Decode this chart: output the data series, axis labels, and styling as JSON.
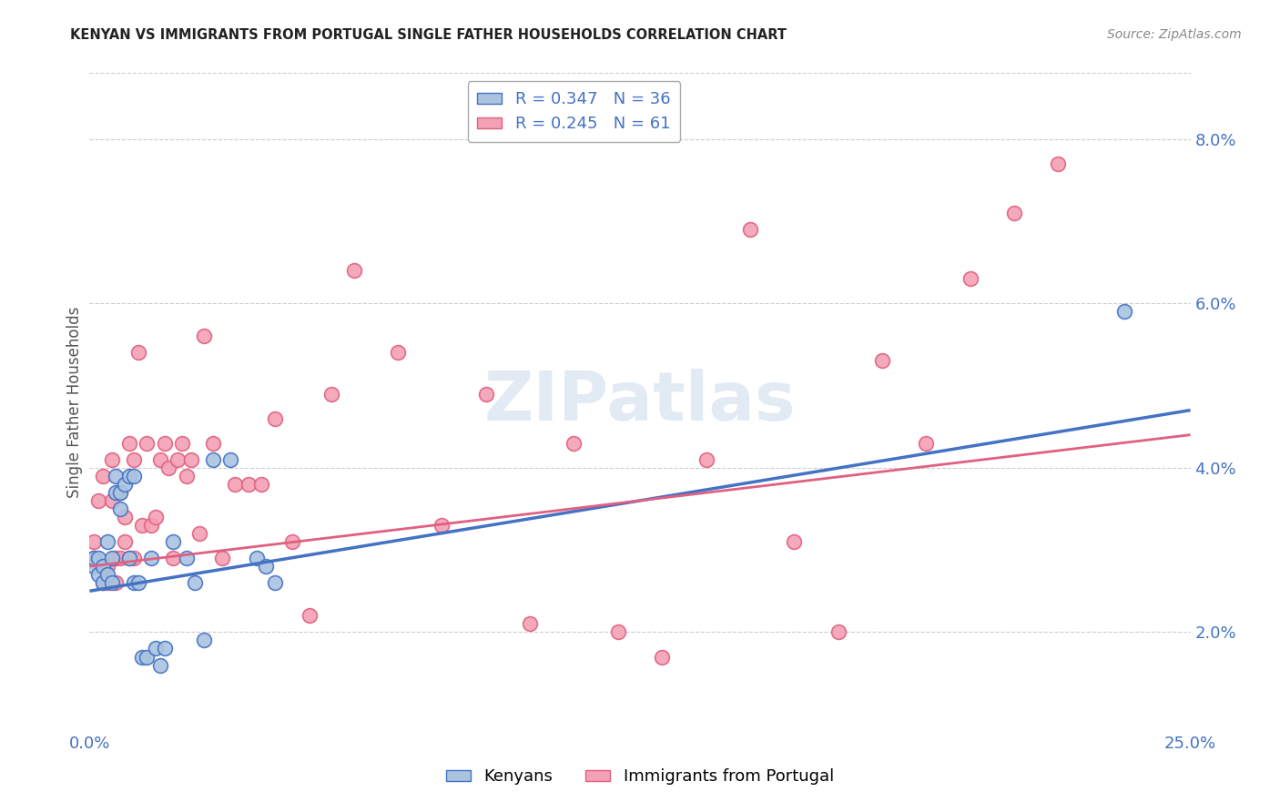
{
  "title": "KENYAN VS IMMIGRANTS FROM PORTUGAL SINGLE FATHER HOUSEHOLDS CORRELATION CHART",
  "source": "Source: ZipAtlas.com",
  "ylabel": "Single Father Households",
  "xlim": [
    0.0,
    0.25
  ],
  "ylim": [
    0.008,
    0.088
  ],
  "yticks": [
    0.02,
    0.04,
    0.06,
    0.08
  ],
  "ytick_labels": [
    "2.0%",
    "4.0%",
    "6.0%",
    "8.0%"
  ],
  "xticks": [
    0.0,
    0.05,
    0.1,
    0.15,
    0.2,
    0.25
  ],
  "xtick_labels": [
    "0.0%",
    "",
    "",
    "",
    "",
    "25.0%"
  ],
  "kenyan_R": 0.347,
  "kenyan_N": 36,
  "portugal_R": 0.245,
  "portugal_N": 61,
  "kenyan_color": "#aac4e0",
  "kenyan_line_color": "#4472c4",
  "portugal_color": "#f4a0b5",
  "portugal_line_color": "#e06080",
  "kenyan_x": [
    0.001,
    0.001,
    0.002,
    0.002,
    0.003,
    0.003,
    0.004,
    0.004,
    0.005,
    0.005,
    0.006,
    0.006,
    0.007,
    0.007,
    0.008,
    0.009,
    0.009,
    0.01,
    0.01,
    0.011,
    0.012,
    0.013,
    0.014,
    0.015,
    0.016,
    0.017,
    0.019,
    0.022,
    0.024,
    0.026,
    0.028,
    0.032,
    0.038,
    0.04,
    0.042,
    0.235
  ],
  "kenyan_y": [
    0.028,
    0.029,
    0.027,
    0.029,
    0.026,
    0.028,
    0.027,
    0.031,
    0.026,
    0.029,
    0.037,
    0.039,
    0.035,
    0.037,
    0.038,
    0.039,
    0.029,
    0.039,
    0.026,
    0.026,
    0.017,
    0.017,
    0.029,
    0.018,
    0.016,
    0.018,
    0.031,
    0.029,
    0.026,
    0.019,
    0.041,
    0.041,
    0.029,
    0.028,
    0.026,
    0.059
  ],
  "portugal_x": [
    0.001,
    0.001,
    0.002,
    0.003,
    0.003,
    0.003,
    0.004,
    0.004,
    0.005,
    0.005,
    0.006,
    0.006,
    0.007,
    0.007,
    0.008,
    0.008,
    0.009,
    0.009,
    0.01,
    0.01,
    0.011,
    0.012,
    0.013,
    0.014,
    0.015,
    0.016,
    0.017,
    0.018,
    0.019,
    0.02,
    0.021,
    0.022,
    0.023,
    0.025,
    0.026,
    0.028,
    0.03,
    0.033,
    0.036,
    0.039,
    0.042,
    0.046,
    0.05,
    0.055,
    0.06,
    0.07,
    0.08,
    0.09,
    0.1,
    0.11,
    0.12,
    0.13,
    0.14,
    0.15,
    0.16,
    0.17,
    0.18,
    0.19,
    0.2,
    0.21,
    0.22
  ],
  "portugal_y": [
    0.029,
    0.031,
    0.036,
    0.026,
    0.028,
    0.039,
    0.026,
    0.028,
    0.036,
    0.041,
    0.026,
    0.029,
    0.029,
    0.037,
    0.031,
    0.034,
    0.029,
    0.043,
    0.029,
    0.041,
    0.054,
    0.033,
    0.043,
    0.033,
    0.034,
    0.041,
    0.043,
    0.04,
    0.029,
    0.041,
    0.043,
    0.039,
    0.041,
    0.032,
    0.056,
    0.043,
    0.029,
    0.038,
    0.038,
    0.038,
    0.046,
    0.031,
    0.022,
    0.049,
    0.064,
    0.054,
    0.033,
    0.049,
    0.021,
    0.043,
    0.02,
    0.017,
    0.041,
    0.069,
    0.031,
    0.02,
    0.053,
    0.043,
    0.063,
    0.071,
    0.077
  ],
  "kenyan_line_y0": 0.025,
  "kenyan_line_y1": 0.047,
  "portugal_line_y0": 0.028,
  "portugal_line_y1": 0.044
}
